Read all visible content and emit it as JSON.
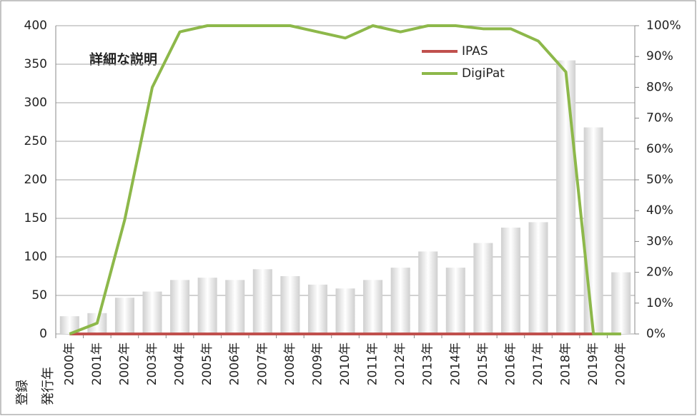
{
  "chart_data": {
    "type": "bar-line",
    "annotation": "詳細な説明",
    "x_axis_labels": [
      "登録",
      "発行年"
    ],
    "categories": [
      "2000年",
      "2001年",
      "2002年",
      "2003年",
      "2004年",
      "2005年",
      "2006年",
      "2007年",
      "2008年",
      "2009年",
      "2010年",
      "2011年",
      "2012年",
      "2013年",
      "2014年",
      "2015年",
      "2016年",
      "2017年",
      "2018年",
      "2019年",
      "2020年"
    ],
    "series": [
      {
        "type": "bar",
        "color": "#cfcfcf",
        "values": [
          23,
          27,
          47,
          55,
          70,
          73,
          70,
          84,
          75,
          64,
          59,
          70,
          86,
          107,
          86,
          118,
          138,
          145,
          355,
          268,
          80
        ]
      },
      {
        "type": "line",
        "name": "IPAS",
        "color": "#c0504d",
        "axis": "y2",
        "values": [
          0,
          0,
          0,
          0,
          0,
          0,
          0,
          0,
          0,
          0,
          0,
          0,
          0,
          0,
          0,
          0,
          0,
          0,
          0,
          0,
          0
        ]
      },
      {
        "type": "line",
        "name": "DigiPat",
        "color": "#8db84a",
        "axis": "y2",
        "values": [
          0,
          3.5,
          37,
          80,
          98,
          100,
          100,
          100,
          100,
          98,
          96,
          100,
          98,
          100,
          100,
          99,
          99,
          95,
          85,
          0,
          0
        ]
      }
    ],
    "ylim": [
      0,
      400
    ],
    "yticks": [
      0,
      50,
      100,
      150,
      200,
      250,
      300,
      350,
      400
    ],
    "y2lim": [
      0,
      100
    ],
    "y2ticks": [
      {
        "value": 0,
        "label": "0%"
      },
      {
        "value": 10,
        "label": "10%"
      },
      {
        "value": 20,
        "label": "20%"
      },
      {
        "value": 30,
        "label": "30%"
      },
      {
        "value": 40,
        "label": "40%"
      },
      {
        "value": 50,
        "label": "50%"
      },
      {
        "value": 60,
        "label": "60%"
      },
      {
        "value": 70,
        "label": "70%"
      },
      {
        "value": 80,
        "label": "80%"
      },
      {
        "value": 90,
        "label": "90%"
      },
      {
        "value": 100,
        "label": "100%"
      }
    ],
    "grid": true
  }
}
